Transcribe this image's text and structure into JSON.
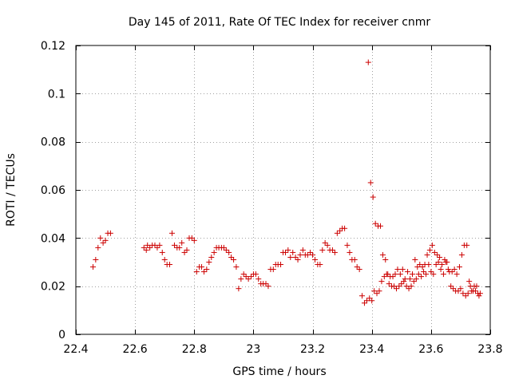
{
  "chart_data": {
    "type": "scatter",
    "title": "Day 145 of 2011, Rate Of TEC Index for receiver cnmr",
    "xlabel": "GPS time / hours",
    "ylabel": "ROTI / TECUs",
    "xlim": [
      22.4,
      23.8
    ],
    "ylim": [
      0,
      0.12
    ],
    "xticks": [
      22.4,
      22.6,
      22.8,
      23.0,
      23.2,
      23.4,
      23.6,
      23.8
    ],
    "xtick_labels": [
      "22.4",
      "22.6",
      "22.8",
      "23",
      "23.2",
      "23.4",
      "23.6",
      "23.8"
    ],
    "yticks": [
      0,
      0.02,
      0.04,
      0.06,
      0.08,
      0.1,
      0.12
    ],
    "ytick_labels": [
      "0",
      "0.02",
      "0.04",
      "0.06",
      "0.08",
      "0.1",
      "0.12"
    ],
    "grid": true,
    "marker": "+",
    "color": "#cc0000",
    "points": [
      [
        22.458,
        0.028
      ],
      [
        22.467,
        0.031
      ],
      [
        22.475,
        0.036
      ],
      [
        22.483,
        0.04
      ],
      [
        22.492,
        0.038
      ],
      [
        22.5,
        0.039
      ],
      [
        22.508,
        0.042
      ],
      [
        22.517,
        0.042
      ],
      [
        22.63,
        0.036
      ],
      [
        22.638,
        0.035
      ],
      [
        22.642,
        0.037
      ],
      [
        22.65,
        0.036
      ],
      [
        22.658,
        0.037
      ],
      [
        22.667,
        0.037
      ],
      [
        22.675,
        0.036
      ],
      [
        22.683,
        0.037
      ],
      [
        22.692,
        0.034
      ],
      [
        22.7,
        0.031
      ],
      [
        22.708,
        0.029
      ],
      [
        22.717,
        0.029
      ],
      [
        22.725,
        0.042
      ],
      [
        22.733,
        0.037
      ],
      [
        22.742,
        0.036
      ],
      [
        22.75,
        0.036
      ],
      [
        22.758,
        0.038
      ],
      [
        22.767,
        0.034
      ],
      [
        22.775,
        0.035
      ],
      [
        22.783,
        0.04
      ],
      [
        22.792,
        0.04
      ],
      [
        22.8,
        0.039
      ],
      [
        22.808,
        0.026
      ],
      [
        22.817,
        0.028
      ],
      [
        22.825,
        0.028
      ],
      [
        22.833,
        0.026
      ],
      [
        22.842,
        0.027
      ],
      [
        22.85,
        0.03
      ],
      [
        22.858,
        0.032
      ],
      [
        22.867,
        0.034
      ],
      [
        22.875,
        0.036
      ],
      [
        22.883,
        0.036
      ],
      [
        22.892,
        0.036
      ],
      [
        22.9,
        0.036
      ],
      [
        22.908,
        0.035
      ],
      [
        22.917,
        0.034
      ],
      [
        22.925,
        0.032
      ],
      [
        22.933,
        0.031
      ],
      [
        22.942,
        0.028
      ],
      [
        22.95,
        0.019
      ],
      [
        22.958,
        0.023
      ],
      [
        22.967,
        0.025
      ],
      [
        22.975,
        0.024
      ],
      [
        22.983,
        0.023
      ],
      [
        22.992,
        0.024
      ],
      [
        23.0,
        0.025
      ],
      [
        23.008,
        0.025
      ],
      [
        23.017,
        0.023
      ],
      [
        23.025,
        0.021
      ],
      [
        23.033,
        0.021
      ],
      [
        23.042,
        0.021
      ],
      [
        23.05,
        0.02
      ],
      [
        23.058,
        0.027
      ],
      [
        23.067,
        0.027
      ],
      [
        23.075,
        0.029
      ],
      [
        23.083,
        0.029
      ],
      [
        23.092,
        0.029
      ],
      [
        23.1,
        0.034
      ],
      [
        23.108,
        0.034
      ],
      [
        23.117,
        0.035
      ],
      [
        23.125,
        0.032
      ],
      [
        23.133,
        0.034
      ],
      [
        23.142,
        0.032
      ],
      [
        23.15,
        0.031
      ],
      [
        23.158,
        0.033
      ],
      [
        23.167,
        0.035
      ],
      [
        23.175,
        0.033
      ],
      [
        23.183,
        0.033
      ],
      [
        23.192,
        0.034
      ],
      [
        23.2,
        0.033
      ],
      [
        23.208,
        0.031
      ],
      [
        23.217,
        0.029
      ],
      [
        23.225,
        0.029
      ],
      [
        23.233,
        0.035
      ],
      [
        23.242,
        0.038
      ],
      [
        23.25,
        0.037
      ],
      [
        23.258,
        0.035
      ],
      [
        23.267,
        0.035
      ],
      [
        23.275,
        0.034
      ],
      [
        23.283,
        0.042
      ],
      [
        23.292,
        0.043
      ],
      [
        23.3,
        0.044
      ],
      [
        23.308,
        0.044
      ],
      [
        23.317,
        0.037
      ],
      [
        23.325,
        0.034
      ],
      [
        23.333,
        0.031
      ],
      [
        23.342,
        0.031
      ],
      [
        23.35,
        0.028
      ],
      [
        23.358,
        0.027
      ],
      [
        23.367,
        0.016
      ],
      [
        23.375,
        0.013
      ],
      [
        23.383,
        0.014
      ],
      [
        23.388,
        0.113
      ],
      [
        23.392,
        0.015
      ],
      [
        23.396,
        0.063
      ],
      [
        23.4,
        0.014
      ],
      [
        23.404,
        0.057
      ],
      [
        23.408,
        0.018
      ],
      [
        23.412,
        0.046
      ],
      [
        23.417,
        0.017
      ],
      [
        23.421,
        0.045
      ],
      [
        23.425,
        0.018
      ],
      [
        23.429,
        0.045
      ],
      [
        23.433,
        0.022
      ],
      [
        23.437,
        0.033
      ],
      [
        23.442,
        0.024
      ],
      [
        23.446,
        0.031
      ],
      [
        23.45,
        0.025
      ],
      [
        23.454,
        0.025
      ],
      [
        23.458,
        0.021
      ],
      [
        23.462,
        0.024
      ],
      [
        23.467,
        0.02
      ],
      [
        23.471,
        0.024
      ],
      [
        23.475,
        0.02
      ],
      [
        23.479,
        0.025
      ],
      [
        23.483,
        0.019
      ],
      [
        23.487,
        0.027
      ],
      [
        23.492,
        0.02
      ],
      [
        23.496,
        0.025
      ],
      [
        23.5,
        0.021
      ],
      [
        23.504,
        0.027
      ],
      [
        23.508,
        0.022
      ],
      [
        23.512,
        0.023
      ],
      [
        23.517,
        0.02
      ],
      [
        23.521,
        0.026
      ],
      [
        23.525,
        0.019
      ],
      [
        23.529,
        0.023
      ],
      [
        23.533,
        0.02
      ],
      [
        23.537,
        0.025
      ],
      [
        23.542,
        0.022
      ],
      [
        23.546,
        0.031
      ],
      [
        23.55,
        0.023
      ],
      [
        23.554,
        0.028
      ],
      [
        23.558,
        0.025
      ],
      [
        23.562,
        0.029
      ],
      [
        23.567,
        0.024
      ],
      [
        23.571,
        0.028
      ],
      [
        23.575,
        0.026
      ],
      [
        23.579,
        0.029
      ],
      [
        23.583,
        0.025
      ],
      [
        23.587,
        0.033
      ],
      [
        23.592,
        0.029
      ],
      [
        23.596,
        0.035
      ],
      [
        23.6,
        0.026
      ],
      [
        23.604,
        0.037
      ],
      [
        23.608,
        0.025
      ],
      [
        23.612,
        0.034
      ],
      [
        23.617,
        0.029
      ],
      [
        23.621,
        0.033
      ],
      [
        23.625,
        0.03
      ],
      [
        23.629,
        0.032
      ],
      [
        23.633,
        0.027
      ],
      [
        23.637,
        0.029
      ],
      [
        23.642,
        0.025
      ],
      [
        23.646,
        0.031
      ],
      [
        23.65,
        0.03
      ],
      [
        23.654,
        0.03
      ],
      [
        23.658,
        0.027
      ],
      [
        23.662,
        0.026
      ],
      [
        23.667,
        0.02
      ],
      [
        23.671,
        0.026
      ],
      [
        23.675,
        0.019
      ],
      [
        23.679,
        0.027
      ],
      [
        23.683,
        0.018
      ],
      [
        23.687,
        0.025
      ],
      [
        23.692,
        0.018
      ],
      [
        23.696,
        0.028
      ],
      [
        23.7,
        0.019
      ],
      [
        23.704,
        0.033
      ],
      [
        23.708,
        0.017
      ],
      [
        23.712,
        0.037
      ],
      [
        23.717,
        0.016
      ],
      [
        23.721,
        0.037
      ],
      [
        23.725,
        0.017
      ],
      [
        23.729,
        0.022
      ],
      [
        23.733,
        0.02
      ],
      [
        23.737,
        0.018
      ],
      [
        23.742,
        0.018
      ],
      [
        23.746,
        0.02
      ],
      [
        23.75,
        0.018
      ],
      [
        23.754,
        0.02
      ],
      [
        23.758,
        0.017
      ],
      [
        23.762,
        0.016
      ],
      [
        23.766,
        0.017
      ]
    ]
  }
}
